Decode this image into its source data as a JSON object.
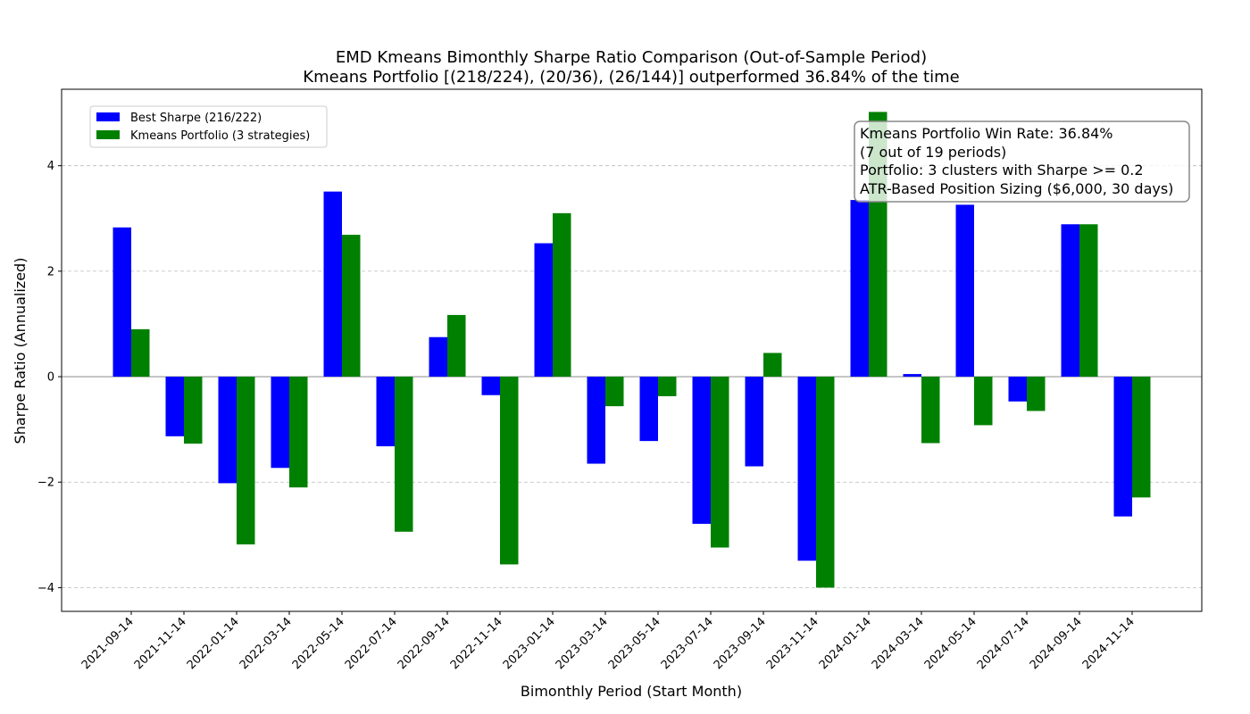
{
  "chart_data": {
    "type": "bar",
    "title": "EMD Kmeans Bimonthly Sharpe Ratio Comparison (Out-of-Sample Period)",
    "subtitle": "Kmeans Portfolio [(218/224), (20/36), (26/144)] outperformed 36.84% of the time",
    "xlabel": "Bimonthly Period (Start Month)",
    "ylabel": "Sharpe Ratio (Annualized)",
    "ylim": [
      -4.45,
      5.45
    ],
    "yticks": [
      -4,
      -2,
      0,
      2,
      4
    ],
    "grid": "horizontal dashed",
    "legend_position": "top-left",
    "categories": [
      "2021-09-14",
      "2021-11-14",
      "2022-01-14",
      "2022-03-14",
      "2022-05-14",
      "2022-07-14",
      "2022-09-14",
      "2022-11-14",
      "2023-01-14",
      "2023-03-14",
      "2023-05-14",
      "2023-07-14",
      "2023-09-14",
      "2023-11-14",
      "2024-01-14",
      "2024-03-14",
      "2024-05-14",
      "2024-07-14",
      "2024-09-14",
      "2024-11-14"
    ],
    "series": [
      {
        "name": "Best Sharpe (216/222)",
        "color": "#0000ff",
        "values": [
          2.83,
          -1.13,
          -2.02,
          -1.73,
          3.51,
          -1.32,
          0.75,
          -0.35,
          2.53,
          -1.65,
          -1.22,
          -2.79,
          -1.7,
          -3.49,
          3.35,
          0.05,
          3.26,
          -0.47,
          2.89,
          -2.65
        ]
      },
      {
        "name": "Kmeans Portfolio (3 strategies)",
        "color": "#008000",
        "values": [
          0.9,
          -1.27,
          -3.18,
          -2.1,
          2.69,
          -2.94,
          1.17,
          -3.56,
          3.1,
          -0.56,
          -0.37,
          -3.24,
          0.45,
          -4.0,
          5.02,
          -1.26,
          -0.92,
          -0.65,
          2.89,
          -2.29
        ]
      }
    ],
    "annotation": [
      "Kmeans Portfolio Win Rate: 36.84%",
      "(7 out of 19 periods)",
      "Portfolio: 3 clusters with Sharpe >= 0.2",
      "ATR-Based Position Sizing ($6,000, 30 days)"
    ]
  }
}
